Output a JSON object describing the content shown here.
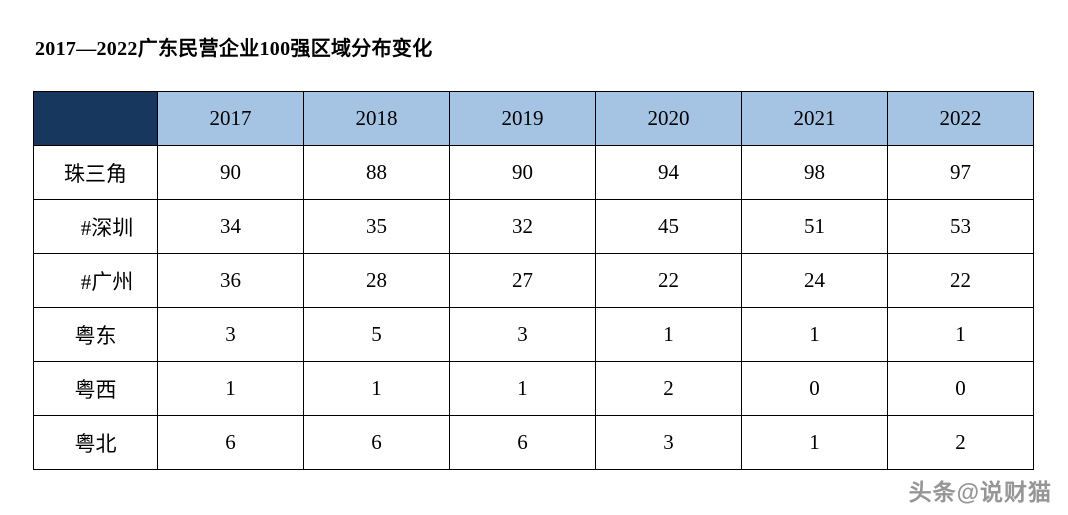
{
  "page": {
    "title": "2017—2022广东民营企业100强区域分布变化"
  },
  "chart_data": {
    "type": "table",
    "title": "2017—2022广东民营企业100强区域分布变化",
    "columns": [
      "",
      "2017",
      "2018",
      "2019",
      "2020",
      "2021",
      "2022"
    ],
    "rows": [
      {
        "label": "珠三角",
        "values": [
          90,
          88,
          90,
          94,
          98,
          97
        ]
      },
      {
        "label": "#深圳",
        "values": [
          34,
          35,
          32,
          45,
          51,
          53
        ]
      },
      {
        "label": "#广州",
        "values": [
          36,
          28,
          27,
          22,
          24,
          22
        ]
      },
      {
        "label": "粤东",
        "values": [
          3,
          5,
          3,
          1,
          1,
          1
        ]
      },
      {
        "label": "粤西",
        "values": [
          1,
          1,
          1,
          2,
          0,
          0
        ]
      },
      {
        "label": "粤北",
        "values": [
          6,
          6,
          6,
          3,
          1,
          2
        ]
      }
    ],
    "layout": {
      "header_bg": "#a5c3e3",
      "corner_bg": "#17375e",
      "border_color": "#000000"
    }
  },
  "watermark": {
    "text": "头条@说财猫"
  }
}
